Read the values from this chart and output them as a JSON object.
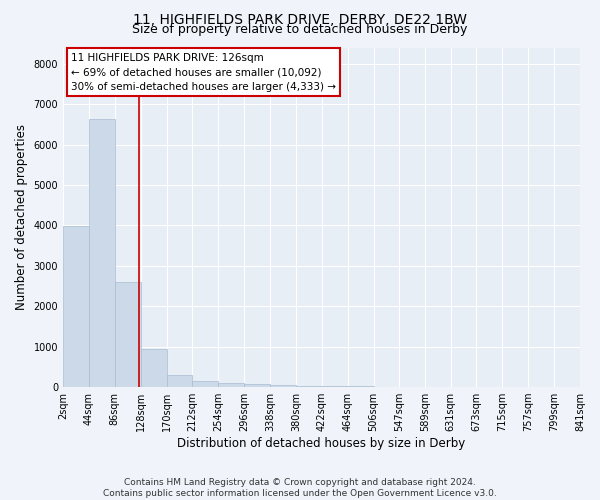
{
  "title1": "11, HIGHFIELDS PARK DRIVE, DERBY, DE22 1BW",
  "title2": "Size of property relative to detached houses in Derby",
  "xlabel": "Distribution of detached houses by size in Derby",
  "ylabel": "Number of detached properties",
  "footer1": "Contains HM Land Registry data © Crown copyright and database right 2024.",
  "footer2": "Contains public sector information licensed under the Open Government Licence v3.0.",
  "annotation_line1": "11 HIGHFIELDS PARK DRIVE: 126sqm",
  "annotation_line2": "← 69% of detached houses are smaller (10,092)",
  "annotation_line3": "30% of semi-detached houses are larger (4,333) →",
  "bar_edges": [
    2,
    44,
    86,
    128,
    170,
    212,
    254,
    296,
    338,
    380,
    422,
    464,
    506,
    547,
    589,
    631,
    673,
    715,
    757,
    799,
    841
  ],
  "bar_heights": [
    3980,
    6620,
    2590,
    935,
    290,
    155,
    95,
    65,
    45,
    32,
    22,
    18,
    14,
    11,
    9,
    7,
    5,
    4,
    3,
    2
  ],
  "bar_color": "#ccd9e8",
  "bar_edge_color": "#a8bdd0",
  "property_size": 126,
  "redline_color": "#cc0000",
  "ylim": [
    0,
    8400
  ],
  "yticks": [
    0,
    1000,
    2000,
    3000,
    4000,
    5000,
    6000,
    7000,
    8000
  ],
  "bg_color": "#f0f4fa",
  "plot_bg_color": "#e8eef6",
  "grid_color": "#ffffff",
  "title1_fontsize": 10,
  "title2_fontsize": 9,
  "annotation_fontsize": 7.5,
  "axis_label_fontsize": 8.5,
  "tick_fontsize": 7,
  "footer_fontsize": 6.5
}
